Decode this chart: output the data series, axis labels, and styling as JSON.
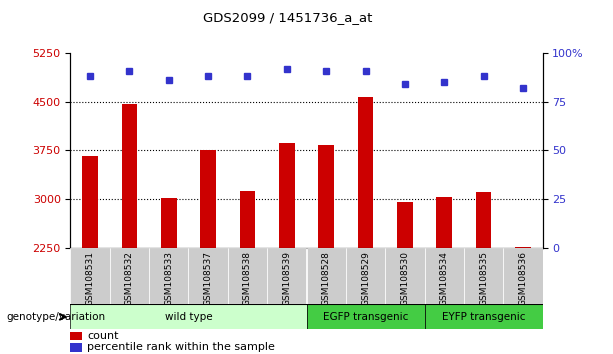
{
  "title": "GDS2099 / 1451736_a_at",
  "samples": [
    "GSM108531",
    "GSM108532",
    "GSM108533",
    "GSM108537",
    "GSM108538",
    "GSM108539",
    "GSM108528",
    "GSM108529",
    "GSM108530",
    "GSM108534",
    "GSM108535",
    "GSM108536"
  ],
  "counts": [
    3670,
    4470,
    3010,
    3750,
    3120,
    3870,
    3840,
    4570,
    2950,
    3040,
    3110,
    2260
  ],
  "percentiles": [
    88,
    91,
    86,
    88,
    88,
    92,
    91,
    91,
    84,
    85,
    88,
    82
  ],
  "ylim_left": [
    2250,
    5250
  ],
  "ylim_right": [
    0,
    100
  ],
  "yticks_left": [
    2250,
    3000,
    3750,
    4500,
    5250
  ],
  "yticks_right": [
    0,
    25,
    50,
    75,
    100
  ],
  "grid_values": [
    3000,
    3750,
    4500
  ],
  "bar_color": "#cc0000",
  "dot_color": "#3333cc",
  "group_labels": [
    "wild type",
    "EGFP transgenic",
    "EYFP transgenic"
  ],
  "group_ranges": [
    [
      0,
      6
    ],
    [
      6,
      9
    ],
    [
      9,
      12
    ]
  ],
  "group_colors": [
    "#ccffcc",
    "#44cc44",
    "#44cc44"
  ],
  "legend_label_count": "count",
  "legend_label_pct": "percentile rank within the sample",
  "xlabel_group": "genotype/variation",
  "tick_label_color_left": "#cc0000",
  "tick_label_color_right": "#3333cc",
  "xticklabel_bg": "#cccccc",
  "bar_width": 0.4
}
